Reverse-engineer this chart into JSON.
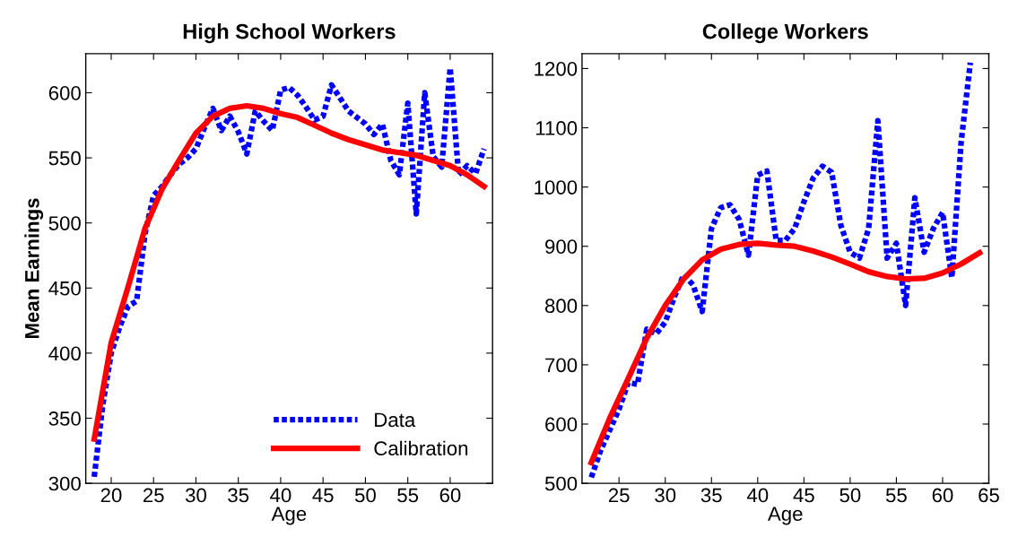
{
  "chart_data": [
    {
      "type": "line",
      "title": "High School Workers",
      "xlabel": "Age",
      "ylabel": "Mean Earnings",
      "xlim": [
        17,
        65
      ],
      "xticks": [
        20,
        25,
        30,
        35,
        40,
        45,
        50,
        55,
        60
      ],
      "ylim": [
        300,
        630
      ],
      "yticks": [
        300,
        350,
        400,
        450,
        500,
        550,
        600
      ],
      "grid": false,
      "legend": "bottom right",
      "series": [
        {
          "name": "Data",
          "color": "#0000ff",
          "line_style": "dotted",
          "x": [
            18,
            19,
            20,
            21,
            22,
            23,
            24,
            25,
            26,
            27,
            28,
            29,
            30,
            31,
            32,
            33,
            34,
            35,
            36,
            37,
            38,
            39,
            40,
            41,
            42,
            43,
            44,
            45,
            46,
            47,
            48,
            49,
            50,
            51,
            52,
            53,
            54,
            55,
            56,
            57,
            58,
            59,
            60,
            61,
            62,
            63,
            64
          ],
          "values": [
            305,
            360,
            400,
            420,
            436,
            440,
            492,
            521,
            528,
            537,
            545,
            550,
            557,
            573,
            588,
            571,
            582,
            570,
            553,
            586,
            578,
            571,
            602,
            604,
            598,
            589,
            579,
            582,
            606,
            596,
            586,
            581,
            576,
            568,
            576,
            548,
            537,
            592,
            507,
            600,
            551,
            543,
            619,
            537,
            544,
            538,
            557
          ]
        },
        {
          "name": "Calibration",
          "color": "#ff0000",
          "line_style": "solid",
          "x": [
            18,
            20,
            22,
            24,
            26,
            28,
            30,
            32,
            34,
            36,
            38,
            40,
            42,
            44,
            46,
            48,
            50,
            52,
            54,
            56,
            58,
            60,
            62,
            64
          ],
          "values": [
            334,
            408,
            451,
            496,
            526,
            548,
            569,
            582,
            588,
            590,
            588,
            584,
            581,
            575,
            569,
            564,
            560,
            556,
            554,
            552,
            548,
            544,
            537,
            528
          ]
        }
      ]
    },
    {
      "type": "line",
      "title": "College Workers",
      "xlabel": "Age",
      "xlim": [
        21,
        65
      ],
      "xticks": [
        25,
        30,
        35,
        40,
        45,
        50,
        55,
        60,
        65
      ],
      "ylim": [
        500,
        1225
      ],
      "yticks": [
        500,
        600,
        700,
        800,
        900,
        1000,
        1100,
        1200
      ],
      "grid": false,
      "legend": false,
      "series": [
        {
          "color": "#0000ff",
          "line_style": "dotted",
          "x": [
            22,
            23,
            24,
            25,
            26,
            27,
            28,
            29,
            30,
            31,
            32,
            33,
            34,
            35,
            36,
            37,
            38,
            39,
            40,
            41,
            42,
            43,
            44,
            45,
            46,
            47,
            48,
            49,
            50,
            51,
            52,
            53,
            54,
            55,
            56,
            57,
            58,
            59,
            60,
            61,
            62,
            63
          ],
          "values": [
            510,
            555,
            590,
            625,
            670,
            667,
            760,
            752,
            772,
            815,
            852,
            835,
            790,
            930,
            965,
            970,
            945,
            885,
            1020,
            1027,
            910,
            910,
            930,
            975,
            1015,
            1035,
            1025,
            935,
            890,
            880,
            930,
            1112,
            880,
            905,
            800,
            982,
            890,
            930,
            957,
            847,
            1075,
            1210
          ]
        },
        {
          "color": "#ff0000",
          "line_style": "solid",
          "x": [
            22,
            24,
            26,
            28,
            30,
            32,
            34,
            36,
            38,
            40,
            42,
            44,
            46,
            48,
            50,
            52,
            54,
            56,
            58,
            60,
            62,
            64
          ],
          "values": [
            535,
            610,
            677,
            745,
            800,
            845,
            877,
            895,
            903,
            905,
            902,
            900,
            892,
            882,
            870,
            857,
            849,
            845,
            846,
            855,
            870,
            889
          ]
        }
      ]
    }
  ]
}
